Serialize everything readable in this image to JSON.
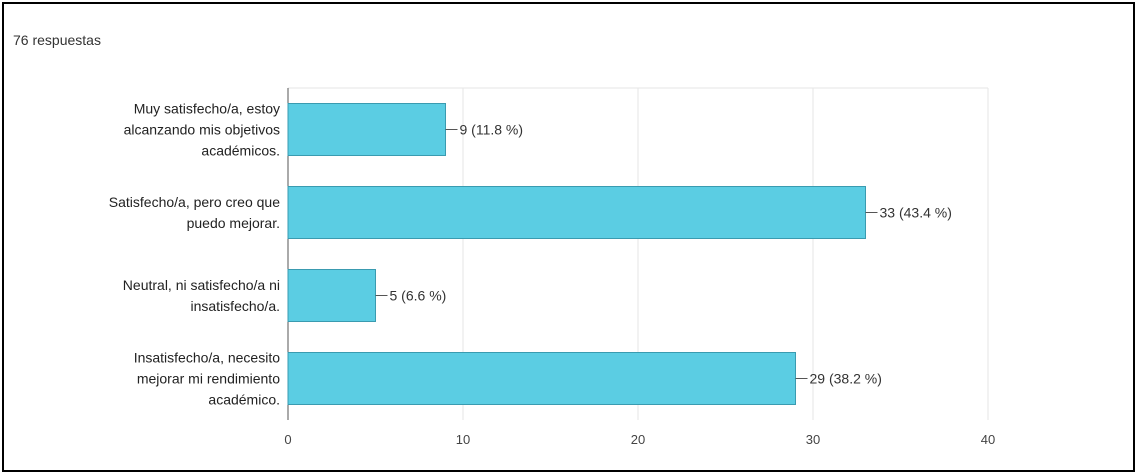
{
  "header": {
    "responses_label": "76 respuestas"
  },
  "chart_data": {
    "type": "bar",
    "orientation": "horizontal",
    "categories": [
      [
        "Muy satisfecho/a, estoy",
        "alcanzando mis objetivos",
        "académicos."
      ],
      [
        "Satisfecho/a, pero creo que",
        "puedo mejorar."
      ],
      [
        "Neutral, ni satisfecho/a ni",
        "insatisfecho/a."
      ],
      [
        "Insatisfecho/a, necesito",
        "mejorar mi rendimiento",
        "académico."
      ]
    ],
    "values": [
      9,
      33,
      5,
      29
    ],
    "data_labels": [
      "9 (11.8 %)",
      "33 (43.4 %)",
      "5 (6.6 %)",
      "29 (38.2 %)"
    ],
    "xlim": [
      0,
      40
    ],
    "xticks": [
      "0",
      "10",
      "20",
      "30",
      "40"
    ],
    "grid": true,
    "bar_color": "#5bcde3"
  }
}
